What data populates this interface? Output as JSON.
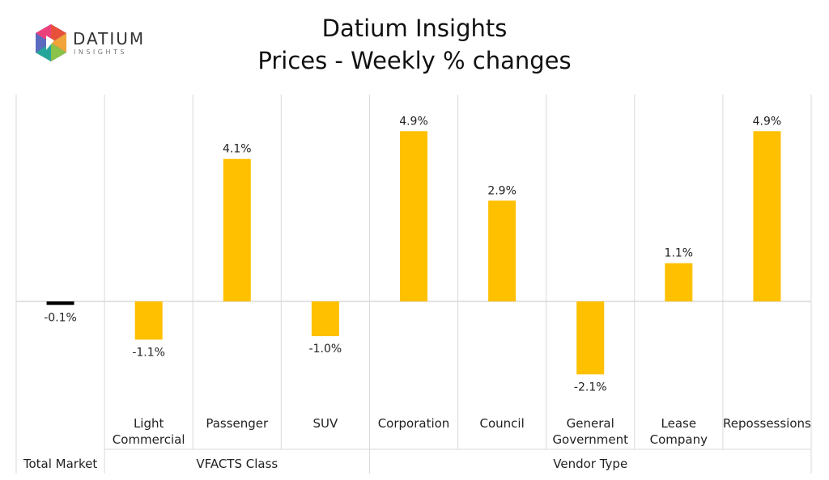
{
  "logo": {
    "name": "DATIUM",
    "sub": "INSIGHTS"
  },
  "chart_data": {
    "type": "bar",
    "title": "Datium Insights",
    "subtitle": "Prices - Weekly % changes",
    "categories": [
      "Total Market",
      "Light Commercial",
      "Passenger",
      "SUV",
      "Corporation",
      "Council",
      "General Government",
      "Lease Company",
      "Repossessions"
    ],
    "category_lines": [
      [
        "Total Market"
      ],
      [
        "Light",
        "Commercial"
      ],
      [
        "Passenger"
      ],
      [
        "SUV"
      ],
      [
        "Corporation"
      ],
      [
        "Council"
      ],
      [
        "General",
        "Government"
      ],
      [
        "Lease",
        "Company"
      ],
      [
        "Repossessions"
      ]
    ],
    "values": [
      -0.1,
      -1.1,
      4.1,
      -1.0,
      4.9,
      2.9,
      -2.1,
      1.1,
      4.9
    ],
    "value_labels": [
      "-0.1%",
      "-1.1%",
      "4.1%",
      "-1.0%",
      "4.9%",
      "2.9%",
      "-2.1%",
      "1.1%",
      "4.9%"
    ],
    "groups": [
      {
        "label": "Total Market",
        "count": 1
      },
      {
        "label": "VFACTS Class",
        "count": 3
      },
      {
        "label": "Vendor Type",
        "count": 5
      }
    ],
    "colors": {
      "total": "#000000",
      "bar": "#FFC000",
      "grid": "#D9D9D9"
    },
    "ylim": [
      -3,
      6
    ],
    "xlabel": "",
    "ylabel": ""
  }
}
